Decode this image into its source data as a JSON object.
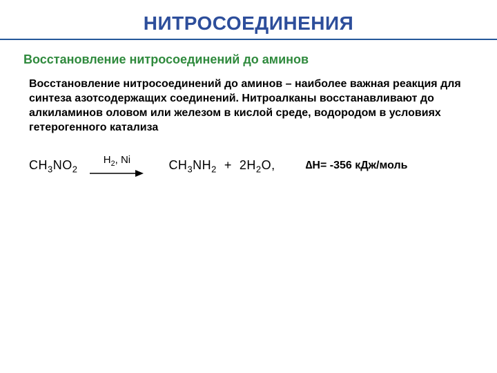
{
  "colors": {
    "title": "#2d4e9b",
    "divider": "#24579a",
    "subtitle": "#2f8a3d",
    "bodytext": "#000000",
    "bg": "#ffffff"
  },
  "title": {
    "text": "НИТРОСОЕДИНЕНИЯ",
    "fontsize": 28
  },
  "subtitle": {
    "text": "Восстановление нитросоединений до аминов",
    "fontsize": 18
  },
  "body": {
    "text": "Восстановление нитросоединений до аминов – наиболее важная реакция для синтеза азотсодержащих соединений. Нитроалканы восстанавливают до алкиламинов оловом или железом в кислой среде, водородом в условиях гетерогенного катализа",
    "fontsize": 16
  },
  "reaction": {
    "reactant_html": "CH<sub>3</sub>NO<sub>2</sub>",
    "arrow_label": "H<sub>2</sub>, Ni",
    "arrow": {
      "width": 78,
      "stroke": "#000000",
      "stroke_width": 1.4
    },
    "products_html": "CH<sub>3</sub>NH<sub>2</sub>&nbsp;&nbsp;+&nbsp;&nbsp;2H<sub>2</sub>O,",
    "arrow_label_fontsize": 15,
    "formula_fontsize": 18
  },
  "enthalpy": {
    "text": "∆H= -356 кДж/моль",
    "fontsize": 16
  }
}
